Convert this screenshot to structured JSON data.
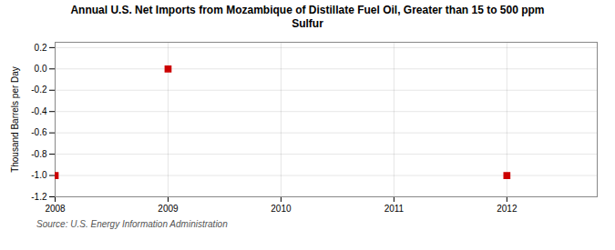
{
  "chart_data": {
    "type": "scatter",
    "title": "Annual U.S. Net Imports from Mozambique of Distillate Fuel Oil, Greater than 15 to 500 ppm\nSulfur",
    "ylabel": "Thousand Barrels per Day",
    "annotations": [
      "Source: U.S. Energy Information Administration"
    ],
    "x": [
      2008,
      2009,
      2012
    ],
    "values": [
      -1.0,
      0.0,
      -1.0
    ],
    "color": "#cc0000",
    "marker": "square",
    "xlim": [
      2008,
      2012.8
    ],
    "ylim": [
      -1.2,
      0.25
    ],
    "xticks": [
      2008,
      2009,
      2010,
      2011,
      2012
    ],
    "yticks": [
      0.2,
      {
        "value": 0,
        "label": "0.0"
      },
      -0.2,
      -0.4,
      -0.6,
      -0.8,
      {
        "value": -1,
        "label": "-1.0"
      },
      -1.2
    ],
    "grid": true
  }
}
